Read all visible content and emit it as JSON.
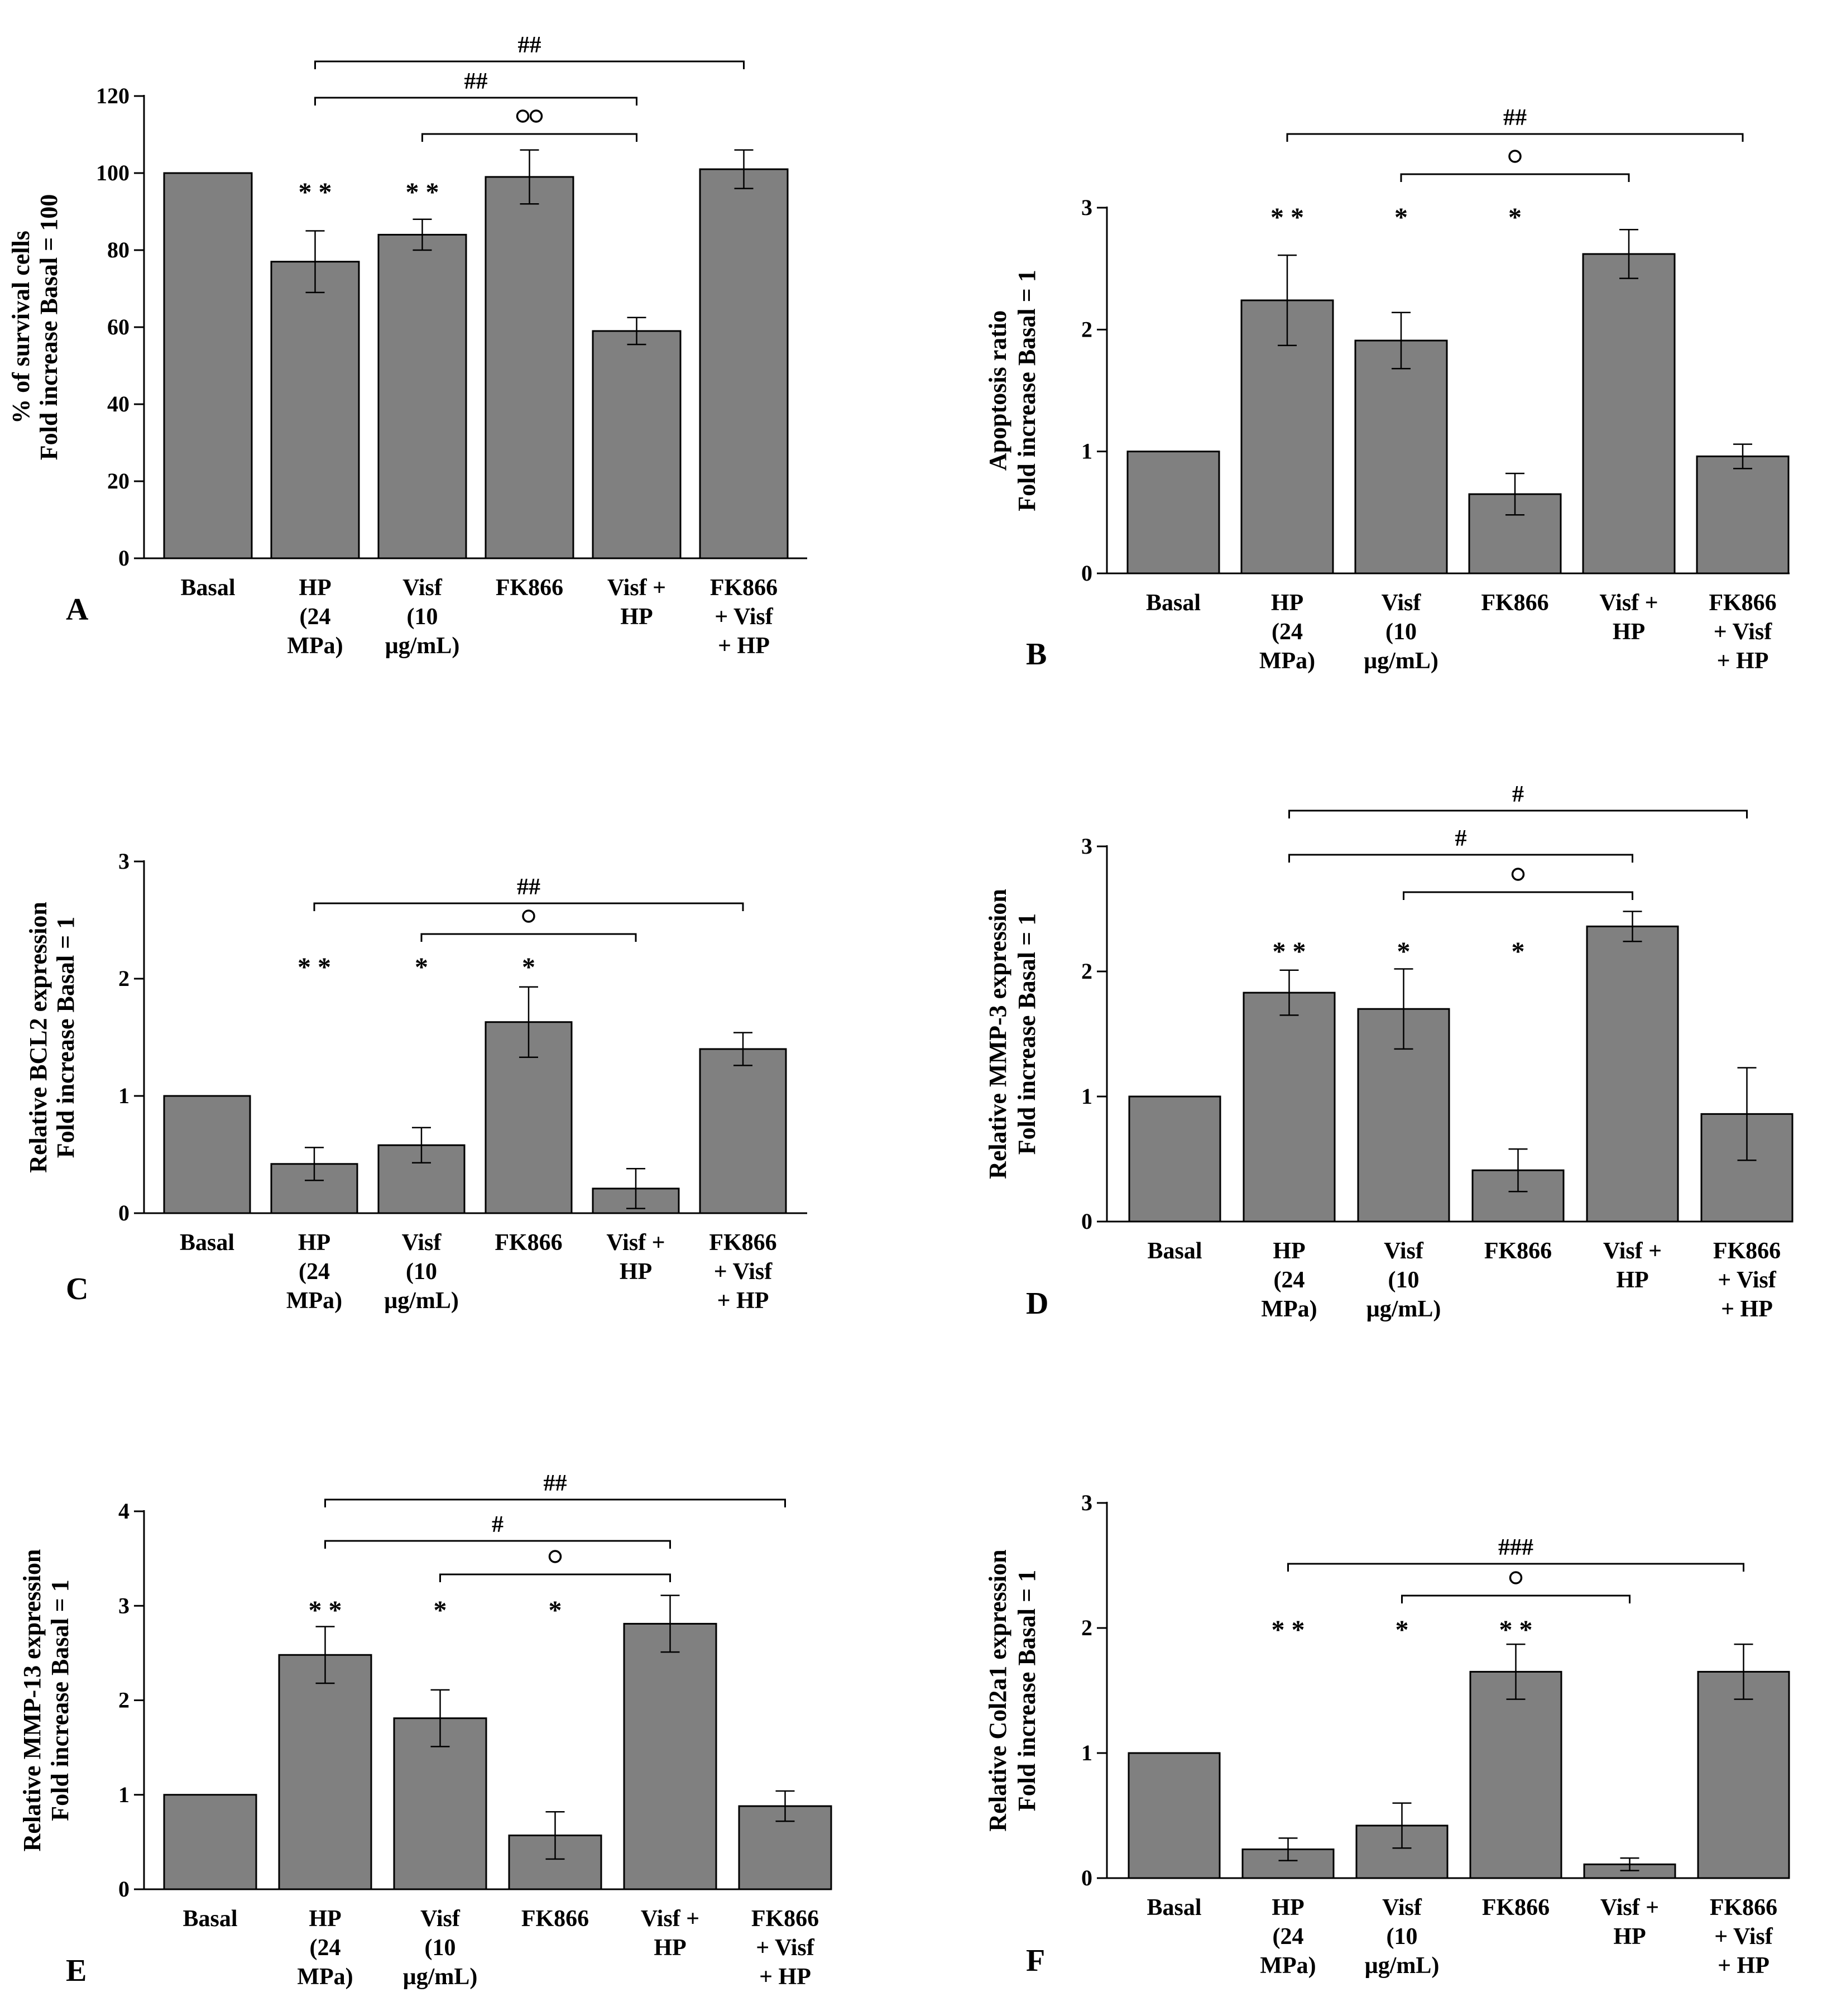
{
  "colors": {
    "bar": "#808080",
    "stroke": "#000000",
    "background": "#ffffff"
  },
  "chart_data": [
    {
      "panel": "A",
      "type": "bar",
      "ylabel": [
        "% of survival cells",
        "Fold increase Basal = 100"
      ],
      "ylim": [
        0,
        120
      ],
      "yticks": [
        0,
        20,
        40,
        60,
        80,
        100,
        120
      ],
      "categories": [
        [
          "Basal"
        ],
        [
          "HP",
          "(24",
          "MPa)"
        ],
        [
          "Visf",
          "(10",
          "µg/mL)"
        ],
        [
          "FK866"
        ],
        [
          "Visf +",
          "HP"
        ],
        [
          "FK866",
          "+ Visf",
          "+ HP"
        ]
      ],
      "values": [
        100,
        77,
        84,
        99,
        59,
        101
      ],
      "errors": [
        0,
        8,
        4,
        7,
        3.5,
        5
      ],
      "bar_marks": [
        "",
        "**",
        "**",
        "",
        "",
        ""
      ],
      "brackets": [
        {
          "from": 1,
          "to": 5,
          "label": "##"
        },
        {
          "from": 1,
          "to": 4,
          "label": "##"
        },
        {
          "from": 2,
          "to": 4,
          "label": "°°"
        }
      ]
    },
    {
      "panel": "B",
      "type": "bar",
      "ylabel": [
        "Apoptosis ratio",
        "Fold increase Basal = 1"
      ],
      "ylim": [
        0,
        3
      ],
      "yticks": [
        0,
        1,
        2,
        3
      ],
      "categories": [
        [
          "Basal"
        ],
        [
          "HP",
          "(24",
          "MPa)"
        ],
        [
          "Visf",
          "(10",
          "µg/mL)"
        ],
        [
          "FK866"
        ],
        [
          "Visf +",
          "HP"
        ],
        [
          "FK866",
          "+ Visf",
          "+ HP"
        ]
      ],
      "values": [
        1,
        2.24,
        1.91,
        0.65,
        2.62,
        0.96
      ],
      "errors": [
        0,
        0.37,
        0.23,
        0.17,
        0.2,
        0.1
      ],
      "bar_marks": [
        "",
        "**",
        "*",
        "*",
        "",
        ""
      ],
      "brackets": [
        {
          "from": 1,
          "to": 5,
          "label": "##"
        },
        {
          "from": 2,
          "to": 4,
          "label": "°"
        }
      ]
    },
    {
      "panel": "C",
      "type": "bar",
      "ylabel": [
        "Relative BCL2 expression",
        "Fold increase Basal = 1"
      ],
      "ylim": [
        0,
        3
      ],
      "yticks": [
        0,
        1,
        2,
        3
      ],
      "categories": [
        [
          "Basal"
        ],
        [
          "HP",
          "(24",
          "MPa)"
        ],
        [
          "Visf",
          "(10",
          "µg/mL)"
        ],
        [
          "FK866"
        ],
        [
          "Visf +",
          "HP"
        ],
        [
          "FK866",
          "+ Visf",
          "+ HP"
        ]
      ],
      "values": [
        1,
        0.42,
        0.58,
        1.63,
        0.21,
        1.4
      ],
      "errors": [
        0,
        0.14,
        0.15,
        0.3,
        0.17,
        0.14
      ],
      "bar_marks": [
        "",
        "**",
        "*",
        "*",
        "",
        ""
      ],
      "brackets": [
        {
          "from": 1,
          "to": 5,
          "label": "##"
        },
        {
          "from": 2,
          "to": 4,
          "label": "°"
        }
      ]
    },
    {
      "panel": "D",
      "type": "bar",
      "ylabel": [
        "Relative MMP-3 expression",
        "Fold increase Basal = 1"
      ],
      "ylim": [
        0,
        3
      ],
      "yticks": [
        0,
        1,
        2,
        3
      ],
      "categories": [
        [
          "Basal"
        ],
        [
          "HP",
          "(24",
          "MPa)"
        ],
        [
          "Visf",
          "(10",
          "µg/mL)"
        ],
        [
          "FK866"
        ],
        [
          "Visf +",
          "HP"
        ],
        [
          "FK866",
          "+ Visf",
          "+ HP"
        ]
      ],
      "values": [
        1,
        1.83,
        1.7,
        0.41,
        2.36,
        0.86
      ],
      "errors": [
        0,
        0.18,
        0.32,
        0.17,
        0.12,
        0.37
      ],
      "bar_marks": [
        "",
        "**",
        "*",
        "*",
        "",
        ""
      ],
      "brackets": [
        {
          "from": 1,
          "to": 5,
          "label": "#"
        },
        {
          "from": 1,
          "to": 4,
          "label": "#"
        },
        {
          "from": 2,
          "to": 4,
          "label": "°"
        }
      ]
    },
    {
      "panel": "E",
      "type": "bar",
      "ylabel": [
        "Relative MMP-13 expression",
        "Fold increase Basal = 1"
      ],
      "ylim": [
        0,
        4
      ],
      "yticks": [
        0,
        1,
        2,
        3,
        4
      ],
      "categories": [
        [
          "Basal"
        ],
        [
          "HP",
          "(24",
          "MPa)"
        ],
        [
          "Visf",
          "(10",
          "µg/mL)"
        ],
        [
          "FK866"
        ],
        [
          "Visf +",
          "HP"
        ],
        [
          "FK866",
          "+ Visf",
          "+ HP"
        ]
      ],
      "values": [
        1,
        2.48,
        1.81,
        0.57,
        2.81,
        0.88
      ],
      "errors": [
        0,
        0.3,
        0.3,
        0.25,
        0.3,
        0.16
      ],
      "bar_marks": [
        "",
        "**",
        "*",
        "*",
        "",
        ""
      ],
      "brackets": [
        {
          "from": 1,
          "to": 5,
          "label": "##"
        },
        {
          "from": 1,
          "to": 4,
          "label": "#"
        },
        {
          "from": 2,
          "to": 4,
          "label": "°"
        }
      ]
    },
    {
      "panel": "F",
      "type": "bar",
      "ylabel": [
        "Relative Col2a1 expression",
        "Fold increase Basal = 1"
      ],
      "ylim": [
        0,
        3
      ],
      "yticks": [
        0,
        1,
        2,
        3
      ],
      "categories": [
        [
          "Basal"
        ],
        [
          "HP",
          "(24",
          "MPa)"
        ],
        [
          "Visf",
          "(10",
          "µg/mL)"
        ],
        [
          "FK866"
        ],
        [
          "Visf +",
          "HP"
        ],
        [
          "FK866",
          "+ Visf",
          "+ HP"
        ]
      ],
      "values": [
        1,
        0.23,
        0.42,
        1.65,
        0.11,
        1.65
      ],
      "errors": [
        0,
        0.09,
        0.18,
        0.22,
        0.05,
        0.22
      ],
      "bar_marks": [
        "",
        "**",
        "*",
        "**",
        "",
        ""
      ],
      "brackets": [
        {
          "from": 1,
          "to": 5,
          "label": "###"
        },
        {
          "from": 2,
          "to": 4,
          "label": "°"
        }
      ]
    }
  ]
}
